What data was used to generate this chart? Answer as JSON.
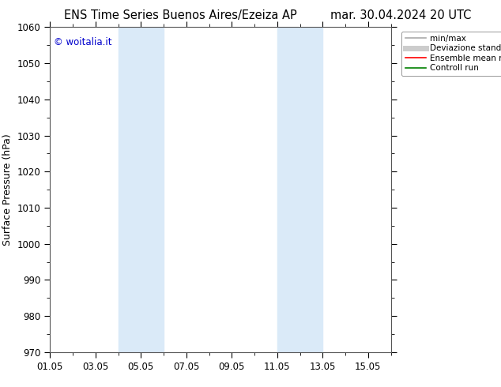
{
  "title_left": "ENS Time Series Buenos Aires/Ezeiza AP",
  "title_right": "mar. 30.04.2024 20 UTC",
  "ylabel": "Surface Pressure (hPa)",
  "ylim": [
    970,
    1060
  ],
  "yticks": [
    970,
    980,
    990,
    1000,
    1010,
    1020,
    1030,
    1040,
    1050,
    1060
  ],
  "xlim_start": 0,
  "xlim_end": 15,
  "xtick_labels": [
    "01.05",
    "03.05",
    "05.05",
    "07.05",
    "09.05",
    "11.05",
    "13.05",
    "15.05"
  ],
  "xtick_positions": [
    0,
    2,
    4,
    6,
    8,
    10,
    12,
    14
  ],
  "shaded_bands": [
    {
      "xmin": 3.0,
      "xmax": 5.0
    },
    {
      "xmin": 10.0,
      "xmax": 12.0
    }
  ],
  "band_color": "#daeaf8",
  "watermark": "© woitalia.it",
  "watermark_color": "#0000cc",
  "legend_entries": [
    {
      "label": "min/max",
      "color": "#aaaaaa",
      "lw": 1.2
    },
    {
      "label": "Deviazione standard",
      "color": "#cccccc",
      "lw": 5
    },
    {
      "label": "Ensemble mean run",
      "color": "#ff0000",
      "lw": 1.2
    },
    {
      "label": "Controll run",
      "color": "#008000",
      "lw": 1.2
    }
  ],
  "bg_color": "#ffffff",
  "title_fontsize": 10.5,
  "axis_label_fontsize": 9,
  "tick_fontsize": 8.5,
  "watermark_fontsize": 8.5
}
